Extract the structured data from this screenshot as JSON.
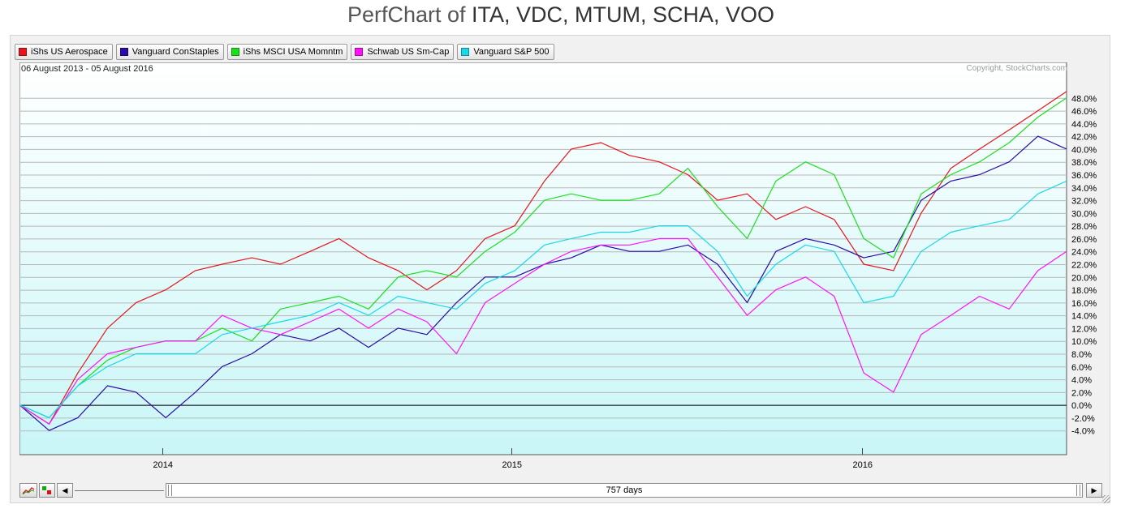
{
  "page": {
    "title_prefix": "PerfChart of",
    "title_tickers": "ITA, VDC, MTUM, SCHA, VOO"
  },
  "date_range": "06 August 2013 - 05 August 2016",
  "copyright": "Copyright, StockCharts.com",
  "legend": [
    {
      "label": "iShs US Aerospace",
      "color": "#e8141a"
    },
    {
      "label": "Vanguard ConStaples",
      "color": "#2a0aa8"
    },
    {
      "label": "iShs MSCI USA Momntm",
      "color": "#1ae01a"
    },
    {
      "label": "Schwab US Sm-Cap",
      "color": "#ff10ff"
    },
    {
      "label": "Vanguard S&P 500",
      "color": "#1ad8e8"
    }
  ],
  "controls": {
    "days_label": "757 days",
    "left_arrow": "◀",
    "right_arrow": "▶"
  },
  "chart_data": {
    "type": "line",
    "title": "PerfChart of ITA, VDC, MTUM, SCHA, VOO",
    "ylabel": "",
    "xlabel": "",
    "ylim": [
      -6,
      50
    ],
    "xlim": [
      "2013-08-06",
      "2016-08-05"
    ],
    "y_ticks": [
      -4,
      -2,
      0,
      2,
      4,
      6,
      8,
      10,
      12,
      14,
      16,
      18,
      20,
      22,
      24,
      26,
      28,
      30,
      32,
      34,
      36,
      38,
      40,
      42,
      44,
      46,
      48
    ],
    "y_tick_labels": [
      "-4.0%",
      "-2.0%",
      "0.0%",
      "2.0%",
      "4.0%",
      "6.0%",
      "8.0%",
      "10.0%",
      "12.0%",
      "14.0%",
      "16.0%",
      "18.0%",
      "20.0%",
      "22.0%",
      "24.0%",
      "26.0%",
      "28.0%",
      "30.0%",
      "32.0%",
      "34.0%",
      "36.0%",
      "38.0%",
      "40.0%",
      "42.0%",
      "44.0%",
      "46.0%",
      "48.0%"
    ],
    "x_ticks": [
      "2014-01-02",
      "2015-01-02",
      "2016-01-04"
    ],
    "x_tick_labels": [
      "2014",
      "2015",
      "2016"
    ],
    "grid": true,
    "legend_position": "top-left",
    "x": [
      "2013-08-06",
      "2013-09-06",
      "2013-10-06",
      "2013-11-06",
      "2013-12-06",
      "2014-01-06",
      "2014-02-06",
      "2014-03-06",
      "2014-04-06",
      "2014-05-06",
      "2014-06-06",
      "2014-07-06",
      "2014-08-06",
      "2014-09-06",
      "2014-10-06",
      "2014-11-06",
      "2014-12-06",
      "2015-01-06",
      "2015-02-06",
      "2015-03-06",
      "2015-04-06",
      "2015-05-06",
      "2015-06-06",
      "2015-07-06",
      "2015-08-06",
      "2015-09-06",
      "2015-10-06",
      "2015-11-06",
      "2015-12-06",
      "2016-01-06",
      "2016-02-06",
      "2016-03-06",
      "2016-04-06",
      "2016-05-06",
      "2016-06-06",
      "2016-07-06",
      "2016-08-05"
    ],
    "series": [
      {
        "name": "iShs US Aerospace",
        "color": "#e8141a",
        "values": [
          0,
          -3,
          5,
          12,
          16,
          18,
          21,
          22,
          23,
          22,
          24,
          26,
          23,
          21,
          18,
          21,
          26,
          28,
          35,
          40,
          41,
          39,
          38,
          36,
          32,
          33,
          29,
          31,
          29,
          22,
          21,
          30,
          37,
          40,
          43,
          46,
          49
        ]
      },
      {
        "name": "Vanguard ConStaples",
        "color": "#2a0aa8",
        "values": [
          0,
          -4,
          -2,
          3,
          2,
          -2,
          2,
          6,
          8,
          11,
          10,
          12,
          9,
          12,
          11,
          16,
          20,
          20,
          22,
          23,
          25,
          24,
          24,
          25,
          22,
          16,
          24,
          26,
          25,
          23,
          24,
          32,
          35,
          36,
          38,
          42,
          40
        ]
      },
      {
        "name": "iShs MSCI USA Momntm",
        "color": "#1ae01a",
        "values": [
          0,
          -2,
          3,
          7,
          9,
          10,
          10,
          12,
          10,
          15,
          16,
          17,
          15,
          20,
          21,
          20,
          24,
          27,
          32,
          33,
          32,
          32,
          33,
          37,
          31,
          26,
          35,
          38,
          36,
          26,
          23,
          33,
          36,
          38,
          41,
          45,
          48
        ]
      },
      {
        "name": "Schwab US Sm-Cap",
        "color": "#ff10ff",
        "values": [
          0,
          -3,
          4,
          8,
          9,
          10,
          10,
          14,
          12,
          11,
          13,
          15,
          12,
          15,
          13,
          8,
          16,
          19,
          22,
          24,
          25,
          25,
          26,
          26,
          20,
          14,
          18,
          20,
          17,
          5,
          2,
          11,
          14,
          17,
          15,
          21,
          24
        ]
      },
      {
        "name": "Vanguard S&P 500",
        "color": "#1ad8e8",
        "values": [
          0,
          -2,
          3,
          6,
          8,
          8,
          8,
          11,
          12,
          13,
          14,
          16,
          14,
          17,
          16,
          15,
          19,
          21,
          25,
          26,
          27,
          27,
          28,
          28,
          24,
          17,
          22,
          25,
          24,
          16,
          17,
          24,
          27,
          28,
          29,
          33,
          35
        ]
      }
    ]
  }
}
